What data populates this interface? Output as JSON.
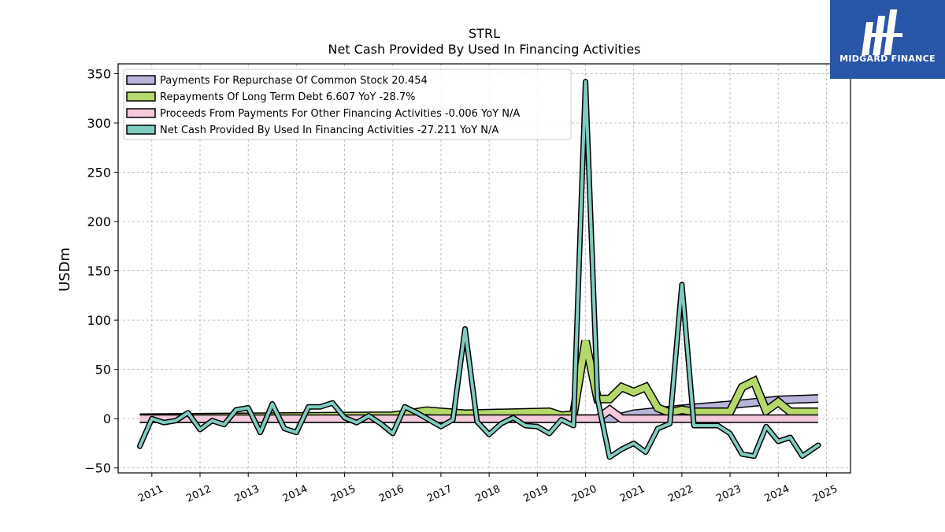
{
  "title": "STRL",
  "subtitle": "Net Cash Provided By Used In Financing Activities",
  "brand": {
    "name": "MIDGARD FINANCE",
    "color": "#2a56a8"
  },
  "chart_data": {
    "type": "line",
    "ylabel": "USDm",
    "xlabel": "",
    "ylim": [
      -55,
      360
    ],
    "xlim": [
      2010.3,
      2025.5
    ],
    "yticks": [
      -50,
      0,
      50,
      100,
      150,
      200,
      250,
      300,
      350
    ],
    "xticks": [
      "2011",
      "2012",
      "2013",
      "2014",
      "2015",
      "2016",
      "2017",
      "2018",
      "2019",
      "2020",
      "2021",
      "2022",
      "2023",
      "2024",
      "2025"
    ],
    "grid": true,
    "legend_position": "top-left",
    "series": [
      {
        "name": "Payments For Repurchase Of Common Stock  20.454",
        "style": "band",
        "color": "#b7b5d9",
        "points": [
          [
            2010.75,
            0
          ],
          [
            2020.6,
            0
          ],
          [
            2021.0,
            5
          ],
          [
            2022.0,
            10
          ],
          [
            2023.0,
            14
          ],
          [
            2024.0,
            19
          ],
          [
            2024.83,
            20.5
          ]
        ]
      },
      {
        "name": "Repayments Of Long Term Debt  6.607 YoY -28.7%",
        "style": "band",
        "color": "#b4d96a",
        "points": [
          [
            2010.75,
            1
          ],
          [
            2016.0,
            3
          ],
          [
            2016.7,
            8
          ],
          [
            2017.5,
            5
          ],
          [
            2019.25,
            7
          ],
          [
            2019.5,
            3
          ],
          [
            2019.75,
            4
          ],
          [
            2020.0,
            79
          ],
          [
            2020.25,
            20
          ],
          [
            2020.5,
            20
          ],
          [
            2020.75,
            32
          ],
          [
            2021.0,
            27
          ],
          [
            2021.25,
            32
          ],
          [
            2021.5,
            11
          ],
          [
            2021.75,
            6
          ],
          [
            2022.0,
            9
          ],
          [
            2022.25,
            7
          ],
          [
            2022.5,
            7
          ],
          [
            2022.75,
            7
          ],
          [
            2023.0,
            7
          ],
          [
            2023.25,
            32
          ],
          [
            2023.5,
            38
          ],
          [
            2023.75,
            8
          ],
          [
            2024.0,
            17
          ],
          [
            2024.25,
            7
          ],
          [
            2024.5,
            7
          ],
          [
            2024.83,
            7
          ]
        ]
      },
      {
        "name": "Proceeds From Payments For Other Financing Activities  -0.006 YoY N/A",
        "style": "band",
        "color": "#f5c9dc",
        "points": [
          [
            2010.75,
            0
          ],
          [
            2020.25,
            0
          ],
          [
            2020.5,
            9
          ],
          [
            2020.75,
            0
          ],
          [
            2024.83,
            0
          ]
        ]
      },
      {
        "name": "Net Cash Provided By Used In Financing Activities  -27.211 YoY N/A",
        "style": "line",
        "color": "#80cbc0",
        "points": [
          [
            2010.75,
            -28
          ],
          [
            2011.0,
            0
          ],
          [
            2011.25,
            -4
          ],
          [
            2011.5,
            -2
          ],
          [
            2011.75,
            6
          ],
          [
            2012.0,
            -11
          ],
          [
            2012.25,
            -2
          ],
          [
            2012.5,
            -6
          ],
          [
            2012.75,
            9
          ],
          [
            2013.0,
            11
          ],
          [
            2013.25,
            -14
          ],
          [
            2013.5,
            15
          ],
          [
            2013.75,
            -10
          ],
          [
            2014.0,
            -14
          ],
          [
            2014.25,
            12
          ],
          [
            2014.5,
            12
          ],
          [
            2014.75,
            16
          ],
          [
            2015.0,
            1
          ],
          [
            2015.25,
            -4
          ],
          [
            2015.5,
            3
          ],
          [
            2015.75,
            -5
          ],
          [
            2016.0,
            -15
          ],
          [
            2016.25,
            12
          ],
          [
            2016.5,
            6
          ],
          [
            2016.75,
            -1
          ],
          [
            2017.0,
            -8
          ],
          [
            2017.25,
            -1
          ],
          [
            2017.5,
            91
          ],
          [
            2017.75,
            -3
          ],
          [
            2018.0,
            -16
          ],
          [
            2018.25,
            -5
          ],
          [
            2018.5,
            1
          ],
          [
            2018.75,
            -7
          ],
          [
            2019.0,
            -8
          ],
          [
            2019.25,
            -15
          ],
          [
            2019.5,
            -1
          ],
          [
            2019.75,
            -7
          ],
          [
            2020.0,
            342
          ],
          [
            2020.25,
            20
          ],
          [
            2020.5,
            -39
          ],
          [
            2020.75,
            -31
          ],
          [
            2021.0,
            -25
          ],
          [
            2021.25,
            -34
          ],
          [
            2021.5,
            -10
          ],
          [
            2021.75,
            -5
          ],
          [
            2022.0,
            136
          ],
          [
            2022.25,
            -7
          ],
          [
            2022.5,
            -7
          ],
          [
            2022.75,
            -7
          ],
          [
            2023.0,
            -15
          ],
          [
            2023.25,
            -36
          ],
          [
            2023.5,
            -38
          ],
          [
            2023.75,
            -8
          ],
          [
            2024.0,
            -23
          ],
          [
            2024.25,
            -19
          ],
          [
            2024.5,
            -38
          ],
          [
            2024.83,
            -27
          ]
        ]
      }
    ]
  }
}
